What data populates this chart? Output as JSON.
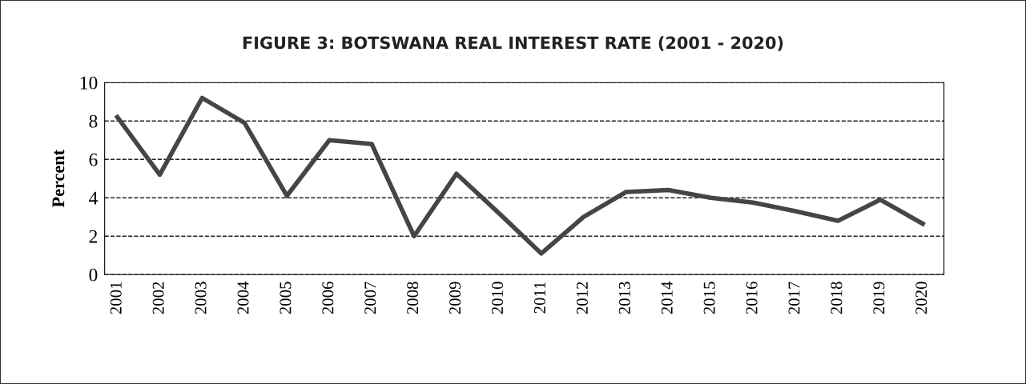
{
  "chart_data": {
    "type": "line",
    "title": "FIGURE 3: BOTSWANA REAL INTEREST RATE (2001 - 2020)",
    "ylabel": "Percent",
    "categories": [
      "2001",
      "2002",
      "2003",
      "2004",
      "2005",
      "2006",
      "2007",
      "2008",
      "2009",
      "2010",
      "2011",
      "2012",
      "2013",
      "2014",
      "2015",
      "2016",
      "2017",
      "2018",
      "2019",
      "2020"
    ],
    "series": [
      {
        "color": "#454545",
        "values": [
          8.2,
          5.2,
          9.2,
          7.9,
          4.1,
          7.0,
          6.8,
          2.0,
          5.25,
          3.2,
          1.1,
          3.0,
          4.3,
          4.4,
          4.0,
          3.75,
          3.3,
          2.8,
          3.9,
          2.65
        ]
      }
    ],
    "ylim": [
      0,
      10
    ],
    "yticks": [
      0,
      2,
      4,
      6,
      8,
      10
    ],
    "grid": "y",
    "line_style": "solid",
    "marker": "none"
  }
}
